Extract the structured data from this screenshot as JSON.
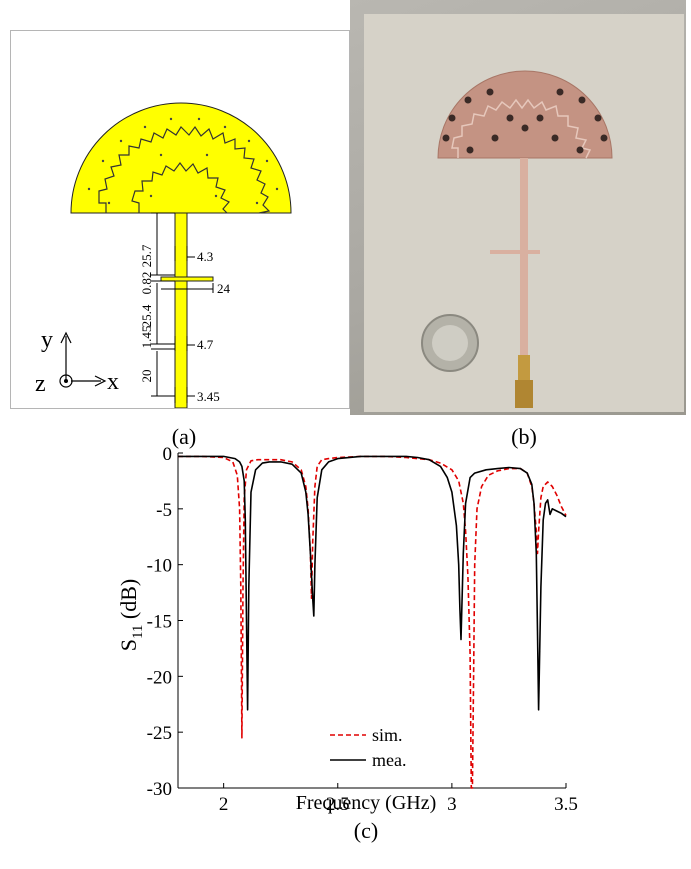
{
  "figure": {
    "panel_a": {
      "label": "(a)",
      "dimensions": [
        "25.7",
        "4.3",
        "0.82",
        "24",
        "25.4",
        "1.45",
        "4.7",
        "20",
        "3.45"
      ],
      "axes": {
        "y": "y",
        "x": "x",
        "z": "z"
      }
    },
    "panel_b": {
      "label": "(b)"
    },
    "panel_c": {
      "label": "(c)"
    }
  },
  "chart_data": {
    "type": "line",
    "xlabel": "Frequency (GHz)",
    "ylabel_main": "S",
    "ylabel_sub": "11",
    "ylabel_unit": " (dB)",
    "xlim": [
      1.8,
      3.5
    ],
    "ylim": [
      -30,
      0
    ],
    "xticks": [
      2,
      2.5,
      3,
      3.5
    ],
    "xtick_labels": [
      "2",
      "2.5",
      "3",
      "3.5"
    ],
    "yticks": [
      0,
      -5,
      -10,
      -15,
      -20,
      -25,
      -30
    ],
    "ytick_labels": [
      "0",
      "-5",
      "-10",
      "-15",
      "-20",
      "-25",
      "-30"
    ],
    "grid": false,
    "legend_position": "bottom-center",
    "series": [
      {
        "name": "sim.",
        "color": "#e00000",
        "dash": "dashed",
        "x": [
          1.8,
          1.9,
          2.0,
          2.04,
          2.06,
          2.07,
          2.075,
          2.08,
          2.085,
          2.09,
          2.1,
          2.12,
          2.15,
          2.2,
          2.25,
          2.3,
          2.34,
          2.36,
          2.37,
          2.38,
          2.385,
          2.39,
          2.4,
          2.41,
          2.43,
          2.46,
          2.5,
          2.6,
          2.7,
          2.8,
          2.9,
          2.95,
          3.0,
          3.03,
          3.05,
          3.06,
          3.07,
          3.08,
          3.085,
          3.09,
          3.095,
          3.1,
          3.11,
          3.13,
          3.16,
          3.2,
          3.25,
          3.3,
          3.33,
          3.35,
          3.36,
          3.37,
          3.375,
          3.38,
          3.39,
          3.4,
          3.42,
          3.44,
          3.46,
          3.48,
          3.5
        ],
        "y": [
          -0.3,
          -0.3,
          -0.4,
          -0.8,
          -2.0,
          -5.0,
          -12.0,
          -25.5,
          -12.0,
          -4.0,
          -1.5,
          -0.7,
          -0.6,
          -0.6,
          -0.6,
          -0.8,
          -1.5,
          -3.0,
          -5.0,
          -9.0,
          -13.0,
          -8.0,
          -3.0,
          -1.2,
          -0.6,
          -0.5,
          -0.4,
          -0.3,
          -0.3,
          -0.4,
          -0.6,
          -0.9,
          -1.5,
          -2.5,
          -4.5,
          -7.0,
          -11.0,
          -18.0,
          -30.0,
          -30.0,
          -20.0,
          -10.0,
          -5.0,
          -3.0,
          -2.0,
          -1.6,
          -1.4,
          -1.4,
          -1.8,
          -3.0,
          -4.5,
          -7.0,
          -9.0,
          -7.0,
          -4.0,
          -3.0,
          -2.6,
          -3.0,
          -3.8,
          -4.8,
          -5.6
        ]
      },
      {
        "name": "mea.",
        "color": "#000000",
        "dash": "solid",
        "x": [
          1.8,
          1.9,
          2.0,
          2.05,
          2.07,
          2.08,
          2.09,
          2.095,
          2.1,
          2.105,
          2.11,
          2.12,
          2.14,
          2.17,
          2.2,
          2.25,
          2.3,
          2.34,
          2.36,
          2.37,
          2.38,
          2.39,
          2.395,
          2.4,
          2.41,
          2.43,
          2.46,
          2.5,
          2.6,
          2.7,
          2.8,
          2.85,
          2.9,
          2.95,
          2.98,
          3.0,
          3.02,
          3.03,
          3.035,
          3.04,
          3.05,
          3.06,
          3.08,
          3.1,
          3.15,
          3.2,
          3.25,
          3.3,
          3.33,
          3.35,
          3.36,
          3.37,
          3.375,
          3.38,
          3.39,
          3.4,
          3.41,
          3.42,
          3.43,
          3.44,
          3.46,
          3.48,
          3.5
        ],
        "y": [
          -0.3,
          -0.3,
          -0.3,
          -0.5,
          -0.8,
          -1.2,
          -2.5,
          -6.0,
          -15.0,
          -23.0,
          -12.0,
          -3.5,
          -1.5,
          -0.9,
          -0.8,
          -0.8,
          -1.0,
          -1.8,
          -3.5,
          -5.5,
          -9.0,
          -13.0,
          -14.6,
          -10.0,
          -4.0,
          -1.5,
          -0.8,
          -0.5,
          -0.3,
          -0.3,
          -0.3,
          -0.4,
          -0.6,
          -1.2,
          -2.2,
          -3.5,
          -6.5,
          -10.0,
          -14.0,
          -16.7,
          -9.0,
          -4.5,
          -2.2,
          -1.8,
          -1.5,
          -1.4,
          -1.3,
          -1.4,
          -1.8,
          -2.8,
          -4.5,
          -9.0,
          -16.0,
          -23.0,
          -12.0,
          -6.0,
          -4.5,
          -4.2,
          -5.5,
          -5.0,
          -5.2,
          -5.4,
          -5.7
        ]
      }
    ]
  }
}
